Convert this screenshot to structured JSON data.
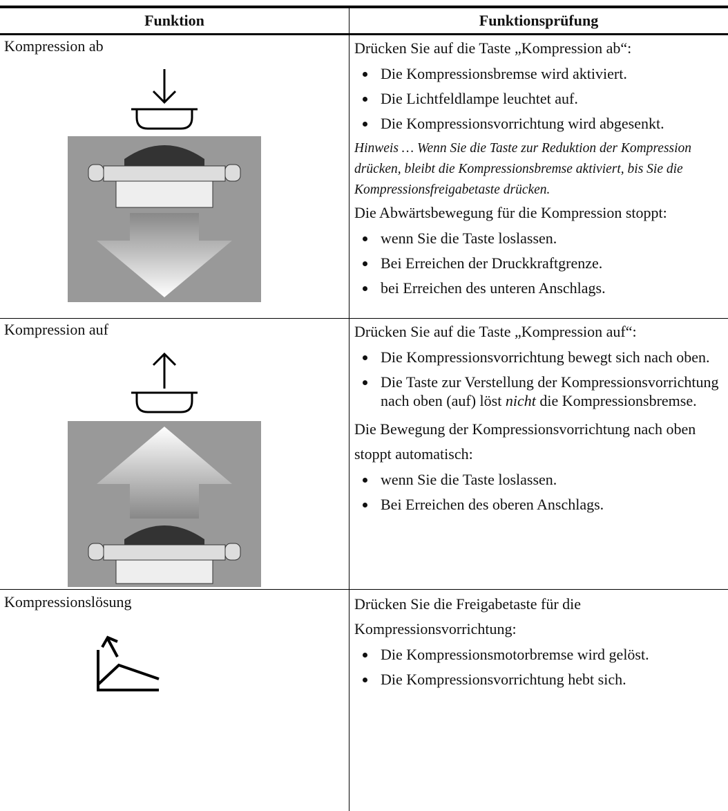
{
  "table": {
    "header": [
      "Funktion",
      "Funktionsprüfung"
    ],
    "rows": [
      {
        "function": "Kompression ab",
        "intro": "Drücken Sie auf die Taste „Kompression ab“:",
        "bullets": [
          "Die Kompressionsbremse wird aktiviert.",
          "Die Lichtfeldlampe leuchtet auf.",
          "Die Kompressionsvorrichtung wird abgesenkt."
        ],
        "note": "Hinweis … Wenn Sie die Taste zur Reduktion der Kompression drücken, bleibt die Kompressionsbremse aktiviert, bis Sie die Kompressionsfreigabetaste drücken.",
        "intro2": "Die Abwärtsbewegung für die Kompression stoppt:",
        "bullets2": [
          "wenn Sie die Taste loslassen.",
          "Bei Erreichen der Druckkraftgrenze.",
          "bei Erreichen des unteren Anschlags."
        ]
      },
      {
        "function": "Kompression auf",
        "intro": "Drücken Sie auf die Taste „Kompression auf“:",
        "bullets": [
          "Die Kompressionsvorrichtung bewegt sich nach oben.",
          {
            "before": "Die Taste zur Verstellung der Kompressionsvorrichtung nach oben (auf) löst",
            "emphasis": "nicht",
            "after": "die Kompressionsbremse."
          }
        ],
        "intro2": "Die Bewegung der Kompressionsvorrichtung nach oben stoppt automatisch:",
        "bullets2": [
          "wenn Sie die Taste loslassen.",
          "Bei Erreichen des oberen Anschlags."
        ]
      },
      {
        "function": "Kompressionslösung",
        "intro": "Drücken Sie die Freigabetaste für die Kompressionsvorrichtung:",
        "bullets": [
          "Die Kompressionsmotorbremse wird gelöst.",
          "Die Kompressionsvorrichtung hebt sich."
        ]
      }
    ]
  }
}
